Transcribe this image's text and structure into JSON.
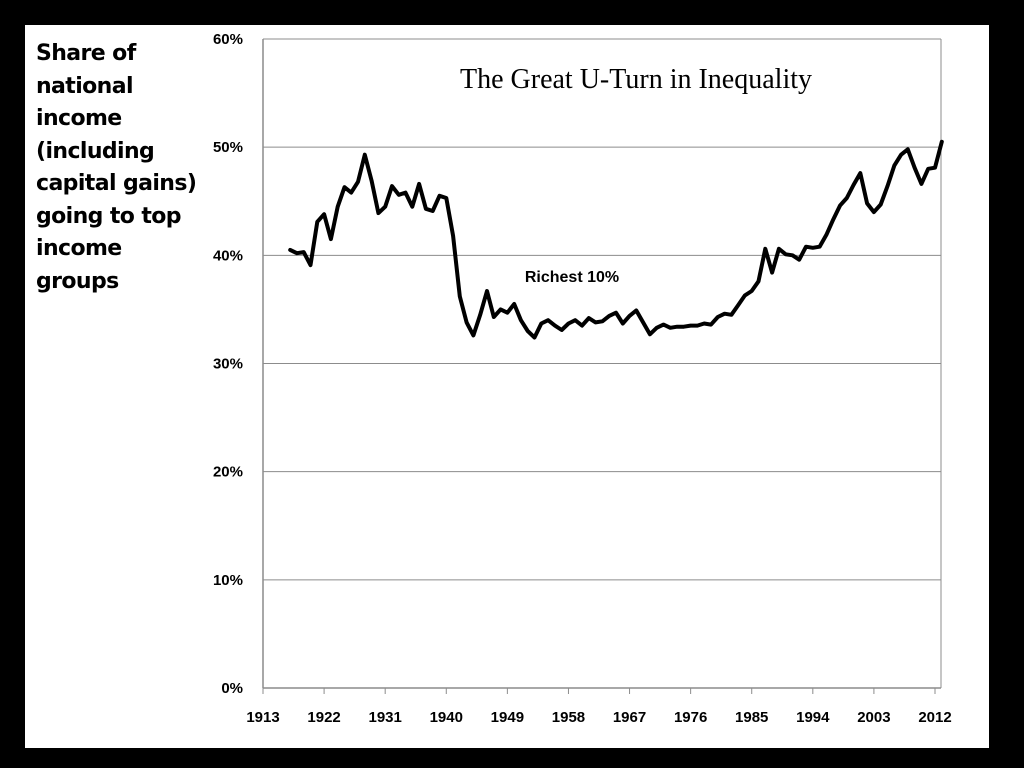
{
  "chart_data": {
    "type": "line",
    "title": "The Great U-Turn in Inequality",
    "ylabel": "Share of\nnational\nincome\n(including\ncapital gains)\ngoing to top\nincome\ngroups",
    "xlabel": "",
    "xlim": [
      1913,
      2012
    ],
    "ylim": [
      0,
      60
    ],
    "x_ticks": [
      1913,
      1922,
      1931,
      1940,
      1949,
      1958,
      1967,
      1976,
      1985,
      1994,
      2003,
      2012
    ],
    "y_ticks": [
      0,
      10,
      20,
      30,
      40,
      50,
      60
    ],
    "y_tick_labels": [
      "0%",
      "10%",
      "20%",
      "30%",
      "40%",
      "50%",
      "60%"
    ],
    "grid": "horizontal",
    "series": [
      {
        "name": "Richest 10%",
        "color": "#000000",
        "points": [
          [
            1917,
            40.5
          ],
          [
            1918,
            40.2
          ],
          [
            1919,
            40.3
          ],
          [
            1920,
            39.1
          ],
          [
            1921,
            43.1
          ],
          [
            1922,
            43.8
          ],
          [
            1923,
            41.5
          ],
          [
            1924,
            44.5
          ],
          [
            1925,
            46.3
          ],
          [
            1926,
            45.8
          ],
          [
            1927,
            46.8
          ],
          [
            1928,
            49.3
          ],
          [
            1929,
            46.9
          ],
          [
            1930,
            43.9
          ],
          [
            1931,
            44.5
          ],
          [
            1932,
            46.4
          ],
          [
            1933,
            45.6
          ],
          [
            1934,
            45.8
          ],
          [
            1935,
            44.5
          ],
          [
            1936,
            46.6
          ],
          [
            1937,
            44.3
          ],
          [
            1938,
            44.1
          ],
          [
            1939,
            45.5
          ],
          [
            1940,
            45.3
          ],
          [
            1941,
            41.8
          ],
          [
            1942,
            36.2
          ],
          [
            1943,
            33.8
          ],
          [
            1944,
            32.6
          ],
          [
            1945,
            34.5
          ],
          [
            1946,
            36.7
          ],
          [
            1947,
            34.3
          ],
          [
            1948,
            35.0
          ],
          [
            1949,
            34.7
          ],
          [
            1950,
            35.5
          ],
          [
            1951,
            34.0
          ],
          [
            1952,
            33.0
          ],
          [
            1953,
            32.4
          ],
          [
            1954,
            33.7
          ],
          [
            1955,
            34.0
          ],
          [
            1956,
            33.5
          ],
          [
            1957,
            33.1
          ],
          [
            1958,
            33.7
          ],
          [
            1959,
            34.0
          ],
          [
            1960,
            33.5
          ],
          [
            1961,
            34.2
          ],
          [
            1962,
            33.8
          ],
          [
            1963,
            33.9
          ],
          [
            1964,
            34.4
          ],
          [
            1965,
            34.7
          ],
          [
            1966,
            33.7
          ],
          [
            1967,
            34.4
          ],
          [
            1968,
            34.9
          ],
          [
            1969,
            33.8
          ],
          [
            1970,
            32.7
          ],
          [
            1971,
            33.3
          ],
          [
            1972,
            33.6
          ],
          [
            1973,
            33.3
          ],
          [
            1974,
            33.4
          ],
          [
            1975,
            33.4
          ],
          [
            1976,
            33.5
          ],
          [
            1977,
            33.5
          ],
          [
            1978,
            33.7
          ],
          [
            1979,
            33.6
          ],
          [
            1980,
            34.3
          ],
          [
            1981,
            34.6
          ],
          [
            1982,
            34.5
          ],
          [
            1983,
            35.4
          ],
          [
            1984,
            36.3
          ],
          [
            1985,
            36.7
          ],
          [
            1986,
            37.6
          ],
          [
            1987,
            40.6
          ],
          [
            1988,
            38.4
          ],
          [
            1989,
            40.6
          ],
          [
            1990,
            40.1
          ],
          [
            1991,
            40.0
          ],
          [
            1992,
            39.6
          ],
          [
            1993,
            40.8
          ],
          [
            1994,
            40.7
          ],
          [
            1995,
            40.8
          ],
          [
            1996,
            41.9
          ],
          [
            1997,
            43.3
          ],
          [
            1998,
            44.6
          ],
          [
            1999,
            45.3
          ],
          [
            2000,
            46.5
          ],
          [
            2001,
            47.6
          ],
          [
            2002,
            44.8
          ],
          [
            2003,
            44.0
          ],
          [
            2004,
            44.7
          ],
          [
            2005,
            46.4
          ],
          [
            2006,
            48.3
          ],
          [
            2007,
            49.3
          ],
          [
            2008,
            49.8
          ],
          [
            2009,
            48.1
          ],
          [
            2010,
            46.6
          ],
          [
            2011,
            48.0
          ],
          [
            2012,
            48.1
          ],
          [
            2013,
            50.5
          ]
        ]
      }
    ]
  }
}
